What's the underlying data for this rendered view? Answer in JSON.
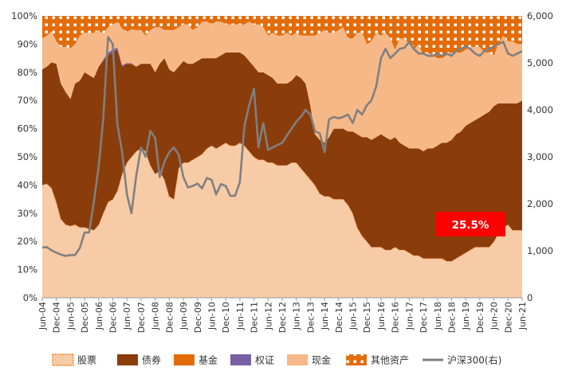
{
  "chart_data": {
    "type": "area",
    "stacking": "percent",
    "left_axis": {
      "ylim": [
        0,
        100
      ],
      "ticks": [
        "0%",
        "10%",
        "20%",
        "30%",
        "40%",
        "50%",
        "60%",
        "70%",
        "80%",
        "90%",
        "100%"
      ]
    },
    "right_axis": {
      "ylim": [
        0,
        6000
      ],
      "ticks": [
        "0",
        "1,000",
        "2,000",
        "3,000",
        "4,000",
        "5,000",
        "6,000"
      ]
    },
    "x_tick_labels": [
      "Jun-04",
      "Dec-04",
      "Jun-05",
      "Dec-05",
      "Jun-06",
      "Dec-06",
      "Jun-07",
      "Dec-07",
      "Jun-08",
      "Dec-08",
      "Jun-09",
      "Dec-09",
      "Jun-10",
      "Dec-10",
      "Jun-11",
      "Dec-11",
      "Jun-12",
      "Dec-12",
      "Jun-13",
      "Dec-13",
      "Jun-14",
      "Dec-14",
      "Jun-15",
      "Dec-15",
      "Jun-16",
      "Dec-16",
      "Jun-17",
      "Dec-17",
      "Jun-18",
      "Dec-18",
      "Jun-19",
      "Dec-19",
      "Jun-20",
      "Dec-20",
      "Jun-21"
    ],
    "x": [
      2004.42,
      2004.58,
      2004.75,
      2004.92,
      2005.08,
      2005.25,
      2005.42,
      2005.58,
      2005.75,
      2005.92,
      2006.08,
      2006.25,
      2006.42,
      2006.58,
      2006.75,
      2006.92,
      2007.08,
      2007.25,
      2007.42,
      2007.58,
      2007.75,
      2007.92,
      2008.08,
      2008.25,
      2008.42,
      2008.58,
      2008.75,
      2008.92,
      2009.08,
      2009.25,
      2009.42,
      2009.58,
      2009.75,
      2009.92,
      2010.08,
      2010.25,
      2010.42,
      2010.58,
      2010.75,
      2010.92,
      2011.08,
      2011.25,
      2011.42,
      2011.58,
      2011.75,
      2011.92,
      2012.08,
      2012.25,
      2012.42,
      2012.58,
      2012.75,
      2012.92,
      2013.08,
      2013.25,
      2013.42,
      2013.58,
      2013.75,
      2013.92,
      2014.08,
      2014.25,
      2014.42,
      2014.58,
      2014.75,
      2014.92,
      2015.08,
      2015.25,
      2015.42,
      2015.58,
      2015.75,
      2015.92,
      2016.08,
      2016.25,
      2016.42,
      2016.58,
      2016.75,
      2016.92,
      2017.08,
      2017.25,
      2017.42,
      2017.58,
      2017.75,
      2017.92,
      2018.08,
      2018.25,
      2018.42,
      2018.58,
      2018.75,
      2018.92,
      2019.08,
      2019.25,
      2019.42,
      2019.58,
      2019.75,
      2019.92,
      2020.08,
      2020.25,
      2020.42,
      2020.58,
      2020.75,
      2020.92,
      2021.08,
      2021.25,
      2021.42
    ],
    "series": [
      {
        "name": "股票",
        "role": "area",
        "color": "#f7cba6",
        "pattern": "dotted-outline",
        "values": [
          40,
          40.5,
          39,
          34,
          28,
          26,
          25.5,
          26,
          25,
          25,
          24.5,
          24,
          26,
          30,
          34,
          35,
          38,
          44,
          48,
          50,
          52,
          53,
          52,
          47,
          44,
          45,
          42,
          36,
          35,
          46,
          48,
          48,
          49,
          50,
          51,
          53,
          54,
          53,
          54,
          55,
          54,
          54,
          55,
          54,
          52,
          50,
          49,
          49,
          48,
          48,
          47,
          47,
          47,
          48,
          48,
          46,
          44,
          42,
          40,
          37,
          36,
          36,
          35,
          35,
          35,
          33,
          30,
          25,
          22,
          20,
          18,
          18,
          18,
          17,
          17,
          18,
          17,
          17,
          16,
          15,
          15,
          14,
          14,
          14,
          14,
          14,
          13,
          13,
          14,
          15,
          16,
          17,
          18,
          18,
          18,
          18,
          20,
          23,
          25,
          26,
          24,
          24,
          24
        ]
      },
      {
        "name": "债券",
        "role": "area",
        "color": "#8b3c0b",
        "values": [
          41,
          41.5,
          44.5,
          49,
          48,
          47,
          45,
          50,
          52,
          55,
          54.5,
          54,
          56,
          54,
          52,
          52,
          50,
          38,
          35,
          33,
          30,
          30,
          31,
          36,
          36,
          38,
          43,
          45,
          45,
          36,
          36,
          35,
          34,
          34,
          34,
          32,
          31,
          32,
          32,
          32,
          33,
          33,
          32,
          32,
          32,
          32,
          31,
          31,
          31,
          30,
          29,
          29,
          29,
          29,
          31,
          32,
          32,
          26,
          18,
          19,
          19,
          21,
          25,
          25,
          25,
          26,
          29,
          33,
          35,
          37,
          38,
          39,
          40,
          40,
          39,
          39,
          38,
          37,
          37,
          38,
          38,
          38,
          39,
          39,
          40,
          41,
          42,
          43,
          44,
          44,
          45,
          45,
          45,
          46,
          47,
          48,
          48,
          46,
          44,
          43,
          45,
          45,
          46
        ]
      },
      {
        "name": "基金",
        "role": "area",
        "color": "#e36c0a",
        "values": [
          0,
          0,
          0,
          0,
          0,
          0,
          0,
          0,
          0,
          0,
          0,
          0,
          0,
          0,
          0,
          0,
          0,
          0,
          0,
          0,
          0,
          0,
          0,
          0,
          0,
          0,
          0,
          0,
          0,
          0,
          0,
          0,
          0,
          0,
          0,
          0,
          0,
          0,
          0,
          0,
          0,
          0,
          0,
          0,
          0,
          0,
          0,
          0,
          0,
          0,
          0,
          0,
          0,
          0,
          0,
          0,
          0,
          0,
          0,
          0,
          0,
          0,
          0,
          0,
          0,
          0,
          0,
          0,
          0,
          0,
          0,
          0,
          0,
          0,
          0,
          0,
          0,
          0,
          0,
          0,
          0,
          0,
          0,
          0,
          0,
          0,
          0,
          0,
          0,
          0,
          0,
          0,
          0,
          0,
          0,
          0,
          0,
          0,
          0,
          0,
          0,
          0,
          0
        ]
      },
      {
        "name": "权证",
        "role": "area",
        "color": "#7a5ea3",
        "values": [
          0,
          0,
          0,
          0,
          0,
          0,
          0,
          0,
          0,
          0,
          0,
          0,
          0,
          0.5,
          1,
          1,
          0.8,
          0.5,
          0.3,
          0.2,
          0,
          0,
          0,
          0,
          0,
          0,
          0,
          0,
          0,
          0,
          0,
          0,
          0,
          0,
          0,
          0,
          0,
          0,
          0,
          0,
          0,
          0,
          0,
          0,
          0,
          0,
          0,
          0,
          0,
          0,
          0,
          0,
          0,
          0,
          0,
          0,
          0,
          0,
          0,
          0,
          0,
          0,
          0,
          0,
          0,
          0,
          0,
          0,
          0,
          0,
          0,
          0,
          0,
          0,
          0,
          0,
          0,
          0,
          0,
          0,
          0,
          0,
          0,
          0,
          0,
          0,
          0,
          0,
          0,
          0,
          0,
          0,
          0,
          0,
          0,
          0,
          0,
          0,
          0,
          0,
          0,
          0,
          0
        ]
      },
      {
        "name": "现金",
        "role": "area",
        "color": "#f7b888",
        "values": [
          11,
          11,
          11,
          8,
          13,
          16,
          18,
          14,
          16,
          14,
          15,
          16,
          13,
          9,
          9,
          9,
          9,
          13,
          11,
          12,
          13,
          12,
          10,
          12,
          16,
          13,
          10,
          14,
          15,
          14,
          13,
          14,
          12,
          12,
          13,
          13,
          12,
          13,
          12,
          10,
          10,
          10,
          10,
          11,
          14,
          15,
          17,
          16,
          14,
          16,
          17,
          17,
          18,
          16,
          15,
          15,
          17,
          25,
          35,
          38,
          40,
          37,
          34,
          35,
          36,
          33,
          33,
          36,
          37,
          33,
          35,
          37,
          35,
          37,
          36,
          31,
          37,
          38,
          37,
          35,
          37,
          34,
          34,
          33,
          31,
          30,
          31,
          31,
          29,
          28,
          27,
          27,
          26,
          25,
          22,
          21,
          18,
          21,
          24,
          22,
          22,
          21,
          20
        ]
      },
      {
        "name": "其他资产",
        "role": "area",
        "color": "#e36c0a",
        "pattern": "white-squares",
        "values": [
          8,
          7,
          5.5,
          9,
          11,
          11,
          11.5,
          10,
          7,
          6,
          6,
          6,
          5,
          6.5,
          4,
          3,
          2.2,
          4.5,
          5.7,
          4.8,
          5,
          5,
          7,
          5,
          4,
          4,
          5,
          5,
          5,
          4,
          3,
          3,
          5,
          4,
          2,
          2,
          3,
          2,
          2,
          3,
          3,
          3,
          3,
          3,
          2,
          3,
          3,
          4,
          7,
          6,
          7,
          7,
          6,
          7,
          6,
          7,
          7,
          7,
          7,
          6,
          5,
          6,
          6,
          5,
          4,
          8,
          8,
          6,
          6,
          10,
          9,
          6,
          7,
          6,
          8,
          12,
          8,
          8,
          10,
          12,
          10,
          14,
          13,
          14,
          15,
          15,
          14,
          13,
          13,
          13,
          12,
          11,
          11,
          11,
          13,
          13,
          14,
          10,
          7,
          9,
          9,
          10,
          10
        ]
      },
      {
        "name": "沪深300(右)",
        "role": "line",
        "axis": "right",
        "color": "#808080",
        "values": [
          1070,
          1080,
          1010,
          960,
          920,
          890,
          910,
          910,
          1060,
          1390,
          1390,
          2050,
          2800,
          3800,
          5550,
          5400,
          3700,
          3100,
          2200,
          1800,
          2600,
          3200,
          3000,
          3550,
          3400,
          2570,
          2900,
          3100,
          3200,
          3050,
          2570,
          2350,
          2380,
          2430,
          2330,
          2550,
          2510,
          2200,
          2420,
          2380,
          2170,
          2170,
          2460,
          3650,
          4100,
          4450,
          3200,
          3720,
          3150,
          3200,
          3250,
          3300,
          3450,
          3600,
          3750,
          3850,
          4000,
          3900,
          3550,
          3500,
          3100,
          3800,
          3850,
          3820,
          3850,
          3900,
          3720,
          4000,
          3900,
          4100,
          4200,
          4500,
          5100,
          5300,
          5100,
          5200,
          5300,
          5320,
          5450,
          5300,
          5200,
          5200,
          5150,
          5150,
          5200,
          5150,
          5200,
          5150,
          5250,
          5300,
          5350,
          5300,
          5200,
          5150,
          5250,
          5300,
          5350,
          5400,
          5450,
          5200,
          5150,
          5200,
          5250
        ]
      }
    ],
    "annotation": {
      "text": "25.5%",
      "background": "#ff0000",
      "color": "#ffffff"
    },
    "legend_position": "bottom",
    "grid": false
  }
}
